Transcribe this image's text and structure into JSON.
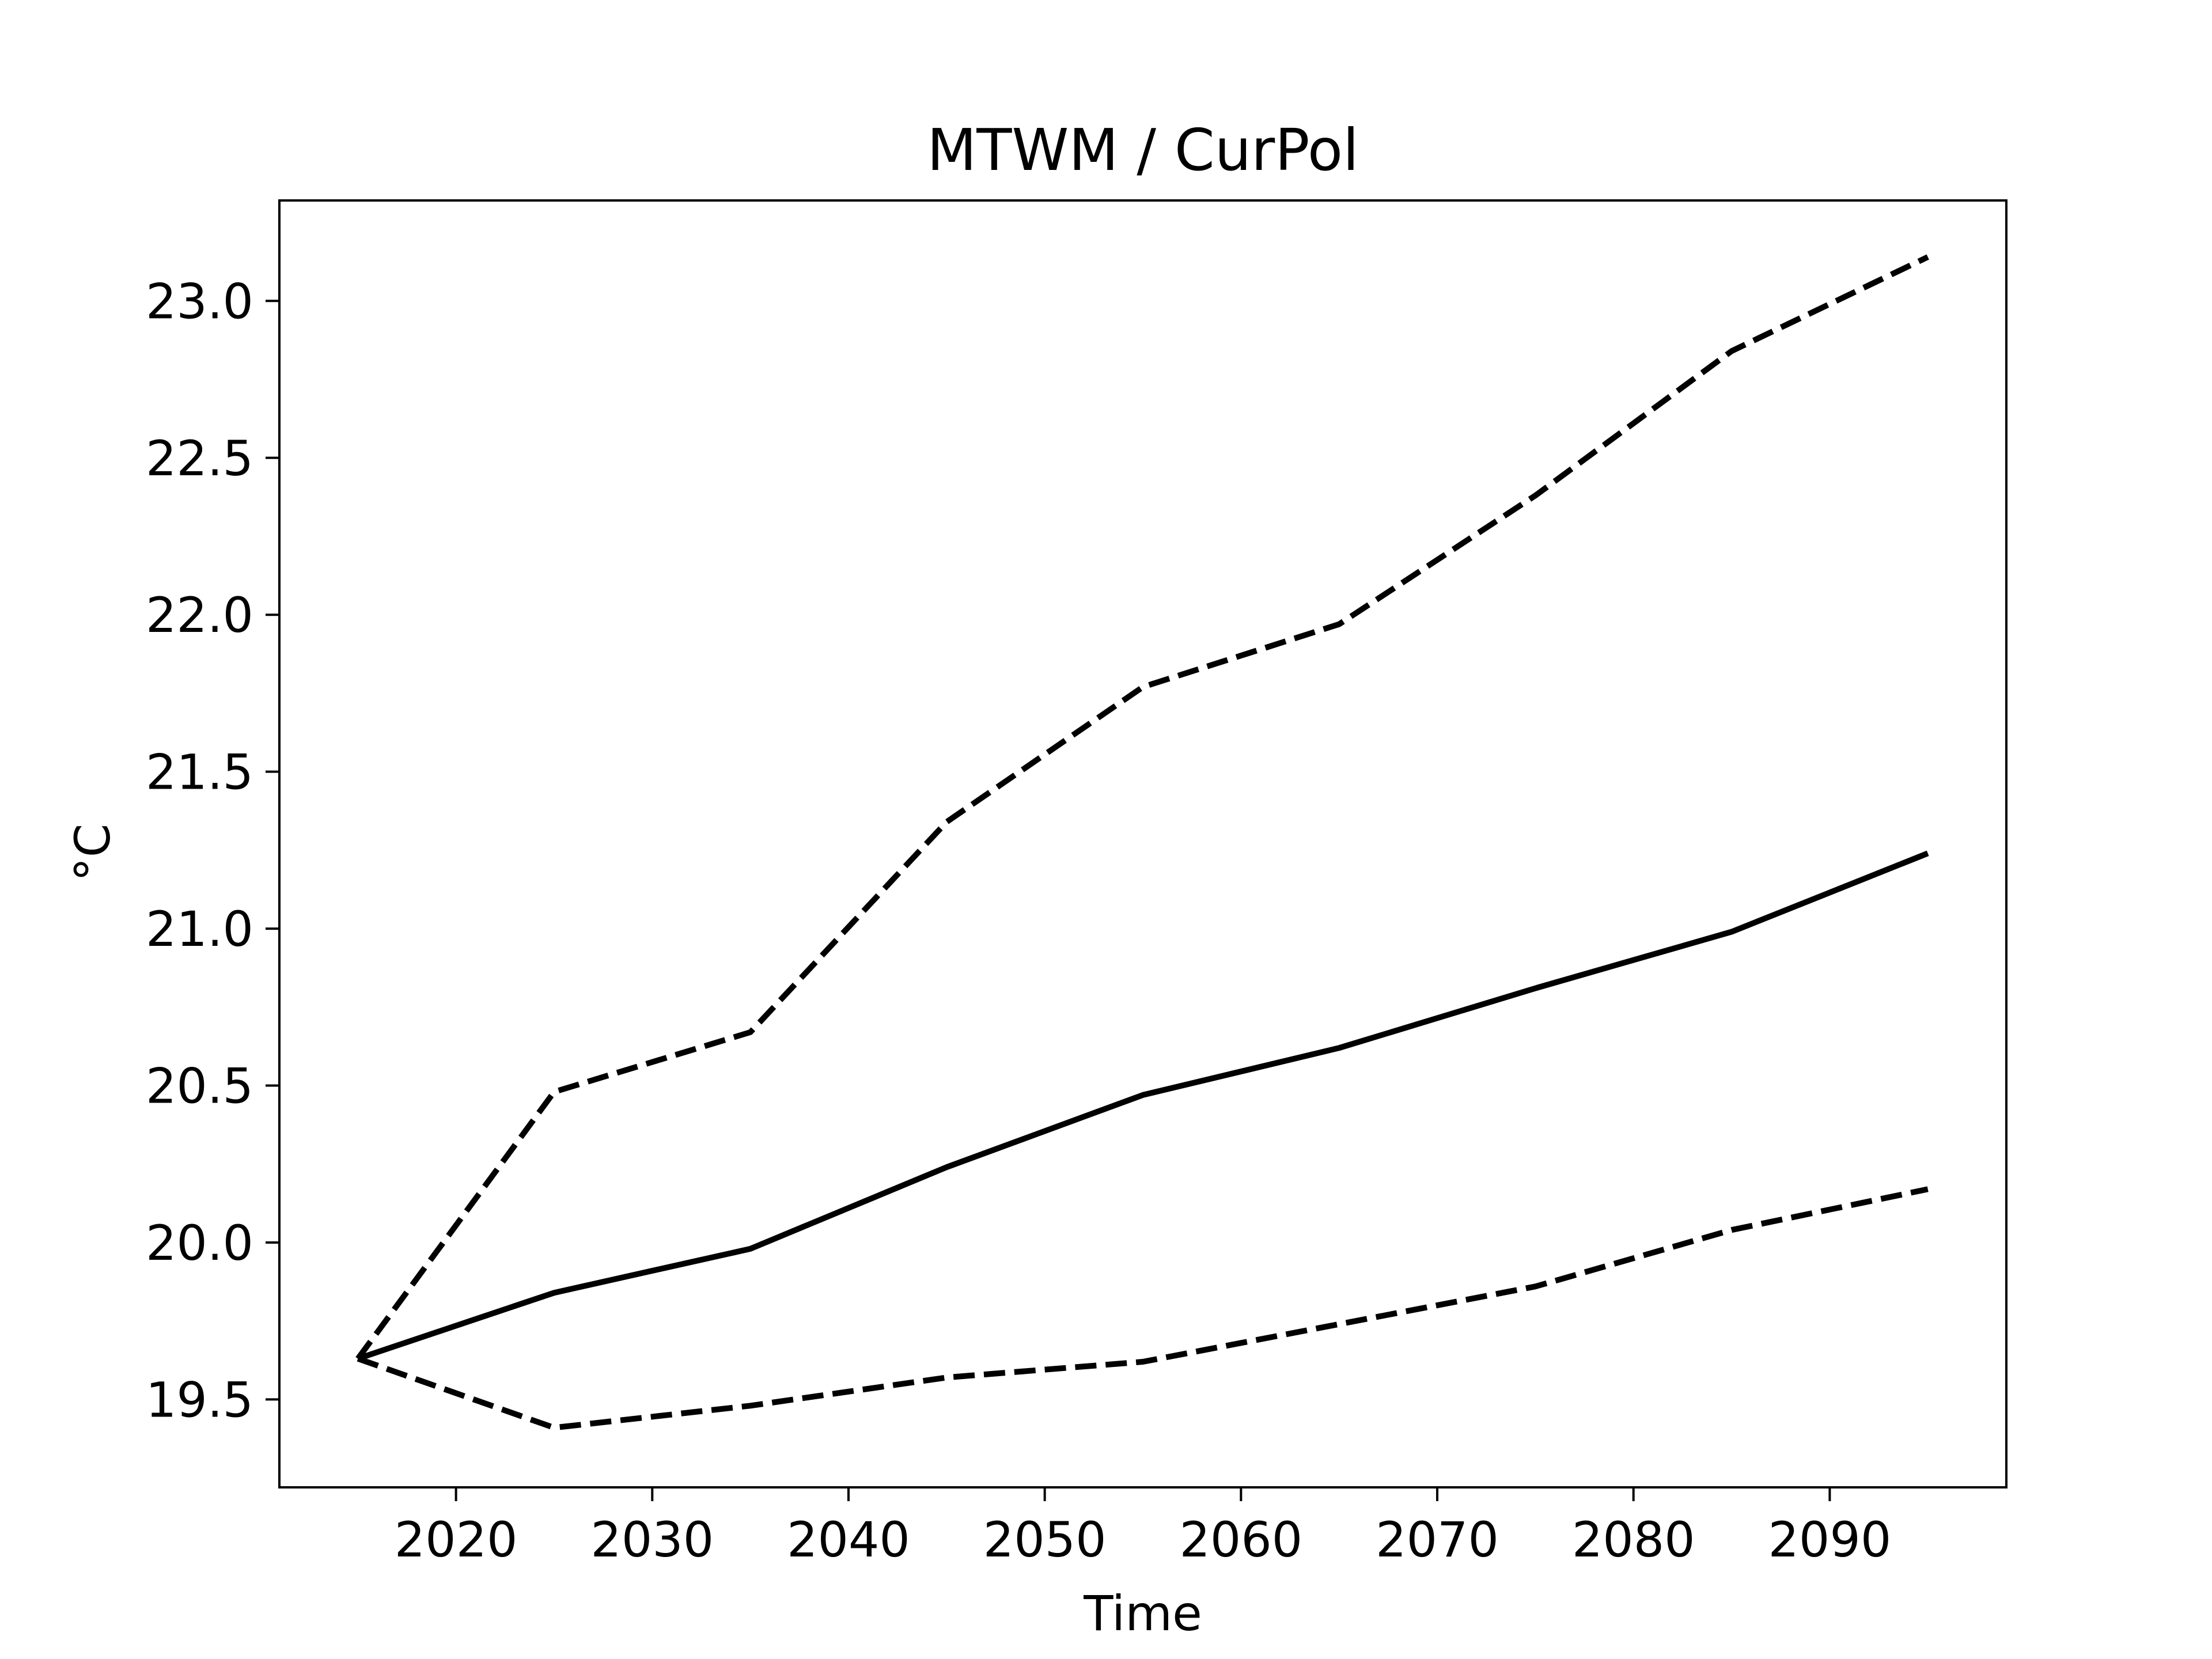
{
  "chart_data": {
    "type": "line",
    "title": "MTWM / CurPol",
    "xlabel": "Time",
    "ylabel": "°C",
    "x": [
      2015,
      2025,
      2035,
      2045,
      2055,
      2065,
      2075,
      2085,
      2095
    ],
    "series": [
      {
        "style": "solid",
        "values": [
          19.63,
          19.84,
          19.98,
          20.24,
          20.47,
          20.62,
          20.81,
          20.99,
          21.24
        ]
      },
      {
        "style": "dashed",
        "values": [
          19.63,
          20.48,
          20.67,
          21.34,
          21.77,
          21.97,
          22.38,
          22.84,
          23.14
        ]
      },
      {
        "style": "dashed",
        "values": [
          19.63,
          19.41,
          19.48,
          19.57,
          19.62,
          19.74,
          19.86,
          20.04,
          20.17
        ]
      }
    ],
    "xlim": [
      2011,
      2099
    ],
    "ylim": [
      19.22,
      23.32
    ],
    "xticks": [
      2020,
      2030,
      2040,
      2050,
      2060,
      2070,
      2080,
      2090
    ],
    "xtick_labels": [
      "2020",
      "2030",
      "2040",
      "2050",
      "2060",
      "2070",
      "2080",
      "2090"
    ],
    "yticks": [
      19.5,
      20.0,
      20.5,
      21.0,
      21.5,
      22.0,
      22.5,
      23.0
    ],
    "ytick_labels": [
      "19.5",
      "20.0",
      "20.5",
      "21.0",
      "21.5",
      "22.0",
      "22.5",
      "23.0"
    ],
    "grid": false,
    "legend": "none",
    "line_color": "#000000"
  }
}
